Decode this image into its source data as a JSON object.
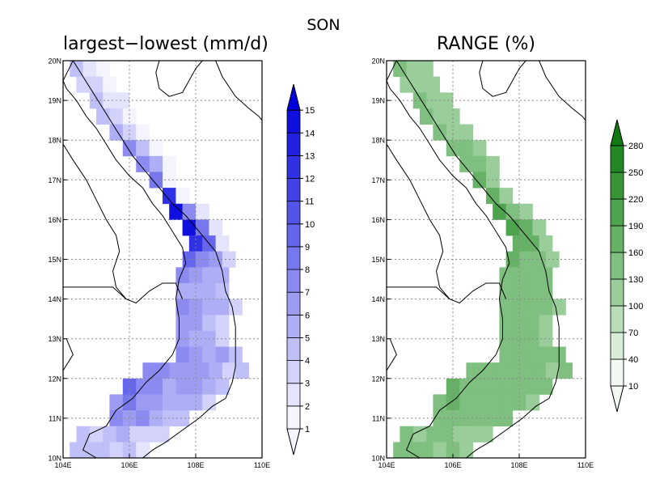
{
  "figure": {
    "title": "SON"
  },
  "panels": [
    {
      "title": "largest−lowest (mm/d)",
      "lon_ticks": [
        "104E",
        "106E",
        "108E",
        "110E"
      ],
      "lat_ticks": [
        "10N",
        "11N",
        "12N",
        "13N",
        "14N",
        "15N",
        "16N",
        "17N",
        "18N",
        "19N",
        "20N"
      ],
      "colorbar": {
        "labels": [
          "1",
          "2",
          "3",
          "4",
          "5",
          "6",
          "7",
          "8",
          "9",
          "10",
          "11",
          "12",
          "13",
          "14",
          "15"
        ],
        "colors": [
          "#f4f4ff",
          "#e4e4fd",
          "#d2d2fb",
          "#c0c0f8",
          "#aeaef6",
          "#9c9cf3",
          "#8a8af1",
          "#7878ee",
          "#6666ec",
          "#5454e9",
          "#4242e6",
          "#3030e4",
          "#2020e1",
          "#1010de",
          "#0000dc"
        ]
      }
    },
    {
      "title": "RANGE (%)",
      "lon_ticks": [
        "104E",
        "106E",
        "108E",
        "110E"
      ],
      "lat_ticks": [
        "10N",
        "11N",
        "12N",
        "13N",
        "14N",
        "15N",
        "16N",
        "17N",
        "18N",
        "19N",
        "20N"
      ],
      "colorbar": {
        "labels": [
          "10",
          "40",
          "70",
          "100",
          "130",
          "160",
          "190",
          "220",
          "250",
          "280"
        ],
        "colors": [
          "#f2f9f2",
          "#d8edd8",
          "#b8ddb8",
          "#99cd99",
          "#7fbf7f",
          "#66b166",
          "#4ea34e",
          "#389538",
          "#238823",
          "#107a10"
        ]
      }
    }
  ],
  "map_data": {
    "lon_range": [
      104,
      110
    ],
    "lat_range": [
      10,
      20
    ],
    "grid": "dotted",
    "rows": [
      {
        "lat": 19.8,
        "lon0": 104.2,
        "lon1": 105.4,
        "wl": 2,
        "wr": 0
      },
      {
        "lat": 19.4,
        "lon0": 104.4,
        "lon1": 105.8,
        "wl": 2,
        "wr": 0
      },
      {
        "lat": 19.0,
        "lon0": 104.8,
        "lon1": 106.0,
        "wl": 3,
        "wr": 0
      },
      {
        "lat": 18.6,
        "lon0": 105.0,
        "lon1": 106.2,
        "wl": 3,
        "wr": 0
      },
      {
        "lat": 18.2,
        "lon0": 105.4,
        "lon1": 106.6,
        "wl": 4,
        "wr": 0
      },
      {
        "lat": 17.8,
        "lon0": 105.8,
        "lon1": 106.8,
        "wl": 5,
        "wr": 0
      },
      {
        "lat": 17.4,
        "lon0": 106.2,
        "lon1": 107.2,
        "wl": 6,
        "wr": 0
      },
      {
        "lat": 17.0,
        "lon0": 106.6,
        "lon1": 107.4,
        "wl": 8,
        "wr": 0
      },
      {
        "lat": 16.6,
        "lon0": 107.0,
        "lon1": 107.8,
        "wl": 11,
        "wr": 0
      },
      {
        "lat": 16.2,
        "lon0": 107.2,
        "lon1": 108.6,
        "wl": 13,
        "wr": 1
      },
      {
        "lat": 15.8,
        "lon0": 107.6,
        "lon1": 108.8,
        "wl": 12,
        "wr": 1
      },
      {
        "lat": 15.4,
        "lon0": 107.8,
        "lon1": 109.0,
        "wl": 11,
        "wr": 2
      },
      {
        "lat": 15.0,
        "lon0": 107.6,
        "lon1": 109.0,
        "wl": 8,
        "wr": 2
      },
      {
        "lat": 14.6,
        "lon0": 107.4,
        "lon1": 109.0,
        "wl": 6,
        "wr": 3
      },
      {
        "lat": 14.2,
        "lon0": 107.4,
        "lon1": 109.2,
        "wl": 5,
        "wr": 3
      },
      {
        "lat": 13.8,
        "lon0": 107.4,
        "lon1": 109.4,
        "wl": 5,
        "wr": 3
      },
      {
        "lat": 13.4,
        "lon0": 107.4,
        "lon1": 109.2,
        "wl": 5,
        "wr": 2
      },
      {
        "lat": 13.0,
        "lon0": 107.4,
        "lon1": 109.2,
        "wl": 5,
        "wr": 2
      },
      {
        "lat": 12.6,
        "lon0": 107.4,
        "lon1": 109.4,
        "wl": 6,
        "wr": 3
      },
      {
        "lat": 12.2,
        "lon0": 106.4,
        "lon1": 109.4,
        "wl": 6,
        "wr": 3
      },
      {
        "lat": 11.8,
        "lon0": 105.8,
        "lon1": 109.0,
        "wl": 7,
        "wr": 3
      },
      {
        "lat": 11.4,
        "lon0": 105.4,
        "lon1": 108.6,
        "wl": 6,
        "wr": 3
      },
      {
        "lat": 11.0,
        "lon0": 105.4,
        "lon1": 107.8,
        "wl": 6,
        "wr": 3
      },
      {
        "lat": 10.6,
        "lon0": 104.4,
        "lon1": 107.2,
        "wl": 3,
        "wr": 2
      },
      {
        "lat": 10.2,
        "lon0": 104.2,
        "lon1": 106.4,
        "wl": 3,
        "wr": 2
      }
    ],
    "land_outline": [
      [
        104.3,
        20.0
      ],
      [
        104.6,
        19.6
      ],
      [
        104.9,
        19.2
      ],
      [
        105.2,
        18.8
      ],
      [
        105.5,
        18.4
      ],
      [
        105.8,
        18.0
      ],
      [
        106.1,
        17.6
      ],
      [
        106.4,
        17.3
      ],
      [
        106.7,
        17.0
      ],
      [
        107.0,
        16.7
      ],
      [
        107.3,
        16.4
      ],
      [
        107.7,
        16.1
      ],
      [
        108.0,
        15.8
      ],
      [
        108.3,
        15.5
      ],
      [
        108.6,
        15.2
      ],
      [
        108.8,
        14.7
      ],
      [
        108.9,
        14.2
      ],
      [
        109.1,
        13.8
      ],
      [
        109.2,
        13.3
      ],
      [
        109.2,
        12.8
      ],
      [
        109.2,
        12.3
      ],
      [
        109.1,
        11.9
      ],
      [
        108.9,
        11.5
      ],
      [
        108.5,
        11.3
      ],
      [
        108.1,
        11.0
      ],
      [
        107.6,
        10.7
      ],
      [
        107.1,
        10.4
      ],
      [
        106.7,
        10.2
      ],
      [
        106.4,
        10.0
      ],
      [
        105.6,
        10.0
      ],
      [
        105.0,
        10.0
      ],
      [
        104.6,
        10.2
      ],
      [
        104.8,
        10.6
      ],
      [
        105.3,
        10.8
      ],
      [
        105.6,
        11.2
      ],
      [
        106.1,
        11.5
      ],
      [
        106.5,
        11.9
      ],
      [
        106.9,
        12.2
      ],
      [
        107.3,
        12.6
      ],
      [
        107.5,
        13.0
      ],
      [
        107.5,
        13.5
      ],
      [
        107.4,
        14.0
      ],
      [
        107.5,
        14.5
      ],
      [
        107.7,
        14.9
      ],
      [
        107.6,
        15.3
      ],
      [
        107.3,
        15.7
      ],
      [
        107.0,
        16.1
      ],
      [
        106.7,
        16.4
      ],
      [
        106.4,
        16.8
      ],
      [
        106.0,
        17.1
      ],
      [
        105.6,
        17.5
      ],
      [
        105.3,
        17.9
      ],
      [
        105.0,
        18.3
      ],
      [
        104.7,
        18.6
      ],
      [
        104.4,
        19.0
      ],
      [
        104.1,
        19.3
      ],
      [
        104.0,
        19.5
      ]
    ],
    "borders": [
      [
        [
          104.0,
          17.9
        ],
        [
          104.3,
          17.5
        ],
        [
          104.7,
          17.0
        ],
        [
          105.0,
          16.5
        ],
        [
          105.3,
          16.0
        ],
        [
          105.6,
          15.6
        ],
        [
          105.7,
          15.2
        ],
        [
          105.5,
          14.7
        ],
        [
          105.6,
          14.3
        ],
        [
          105.9,
          14.0
        ],
        [
          106.2,
          13.9
        ],
        [
          106.6,
          14.2
        ],
        [
          107.0,
          14.4
        ],
        [
          107.4,
          14.4
        ],
        [
          107.6,
          14.0
        ]
      ],
      [
        [
          104.0,
          14.3
        ],
        [
          104.5,
          14.3
        ],
        [
          105.0,
          14.3
        ],
        [
          105.5,
          14.3
        ],
        [
          105.9,
          14.0
        ]
      ],
      [
        [
          104.0,
          12.2
        ],
        [
          104.3,
          12.6
        ],
        [
          104.1,
          13.0
        ]
      ],
      [
        [
          106.9,
          20.0
        ],
        [
          106.8,
          19.7
        ],
        [
          106.9,
          19.3
        ],
        [
          107.2,
          19.1
        ],
        [
          107.6,
          19.2
        ],
        [
          107.8,
          19.5
        ],
        [
          108.0,
          19.8
        ],
        [
          108.2,
          20.0
        ]
      ],
      [
        [
          108.6,
          20.0
        ],
        [
          108.8,
          19.6
        ],
        [
          109.2,
          19.1
        ],
        [
          109.6,
          18.8
        ],
        [
          109.9,
          18.6
        ],
        [
          110.0,
          18.5
        ]
      ]
    ]
  }
}
